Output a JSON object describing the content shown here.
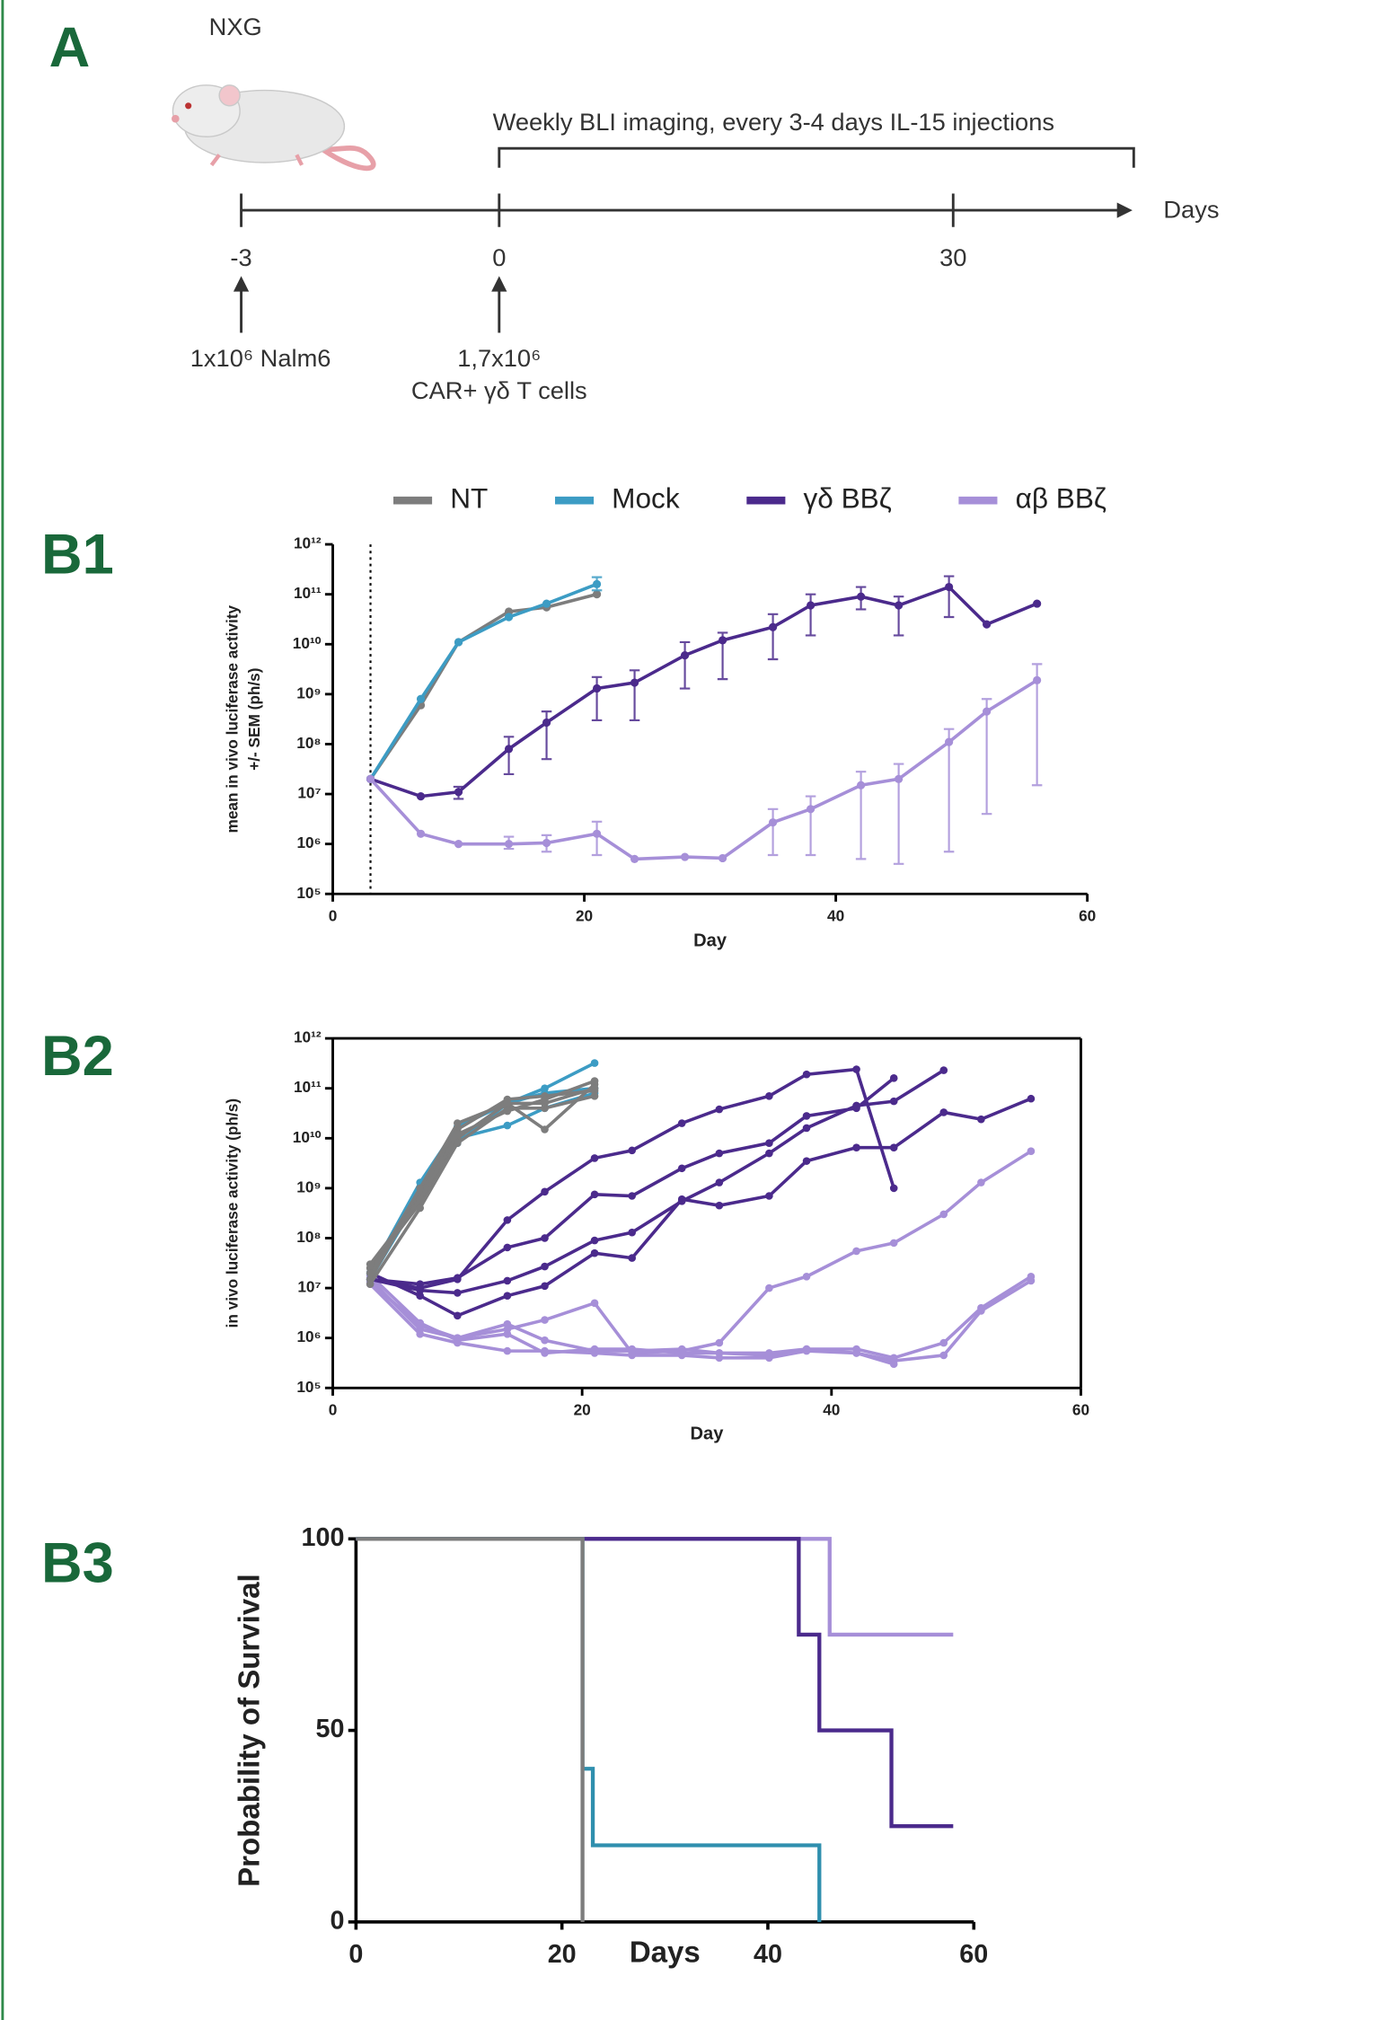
{
  "panels": [
    "A",
    "B1",
    "B2",
    "B3"
  ],
  "timeline": {
    "strain": "NXG",
    "bracket_label": "Weekly BLI imaging, every 3-4 days IL-15 injections",
    "axis_label": "Days",
    "ticks": [
      "-3",
      "0",
      "30"
    ],
    "events": [
      [
        "1x10⁶ Nalm6"
      ],
      [
        "1,7x10⁶",
        "CAR+ γδ T cells"
      ]
    ]
  },
  "chart_data": [
    {
      "type": "line",
      "ylog": true,
      "legend": "top",
      "xlabel": "Day",
      "ylabel": [
        "mean in vivo luciferase activity",
        "+/- SEM (ph/s)"
      ],
      "xlim": [
        0,
        60
      ],
      "xticks": [
        0,
        20,
        40,
        60
      ],
      "ylim": [
        100000.0,
        1000000000000.0
      ],
      "yticks": [
        {
          "value": 100000.0,
          "label": "10⁵"
        },
        {
          "value": 1000000.0,
          "label": "10⁶"
        },
        {
          "value": 10000000.0,
          "label": "10⁷"
        },
        {
          "value": 100000000.0,
          "label": "10⁸"
        },
        {
          "value": 1000000000.0,
          "label": "10⁹"
        },
        {
          "value": 10000000000.0,
          "label": "10¹⁰"
        },
        {
          "value": 100000000000.0,
          "label": "10¹¹"
        },
        {
          "value": 1000000000000.0,
          "label": "10¹²"
        }
      ],
      "vline_x": 3,
      "series": [
        {
          "name": "NT",
          "color": "#7d7d7d",
          "x": [
            3,
            7,
            10,
            14,
            17,
            21
          ],
          "values": [
            20000000.0,
            600000000.0,
            11000000000.0,
            45000000000.0,
            55000000000.0,
            100000000000.0
          ]
        },
        {
          "name": "Mock",
          "color": "#3c9cc4",
          "x": [
            3,
            7,
            10,
            14,
            17,
            21
          ],
          "values": [
            20000000.0,
            800000000.0,
            11000000000.0,
            35000000000.0,
            65000000000.0,
            160000000000.0
          ],
          "error_lower": [
            null,
            null,
            null,
            null,
            null,
            120000000000.0
          ],
          "error_upper": [
            null,
            null,
            null,
            null,
            null,
            220000000000.0
          ]
        },
        {
          "name": "γδ BBζ",
          "color": "#4b2a8c",
          "x": [
            3,
            7,
            10,
            14,
            17,
            21,
            24,
            28,
            31,
            35,
            38,
            42,
            45,
            49,
            52,
            56
          ],
          "values": [
            20000000.0,
            9000000.0,
            11000000.0,
            80000000.0,
            270000000.0,
            1300000000.0,
            1700000000.0,
            6000000000.0,
            12000000000.0,
            22000000000.0,
            60000000000.0,
            90000000000.0,
            60000000000.0,
            140000000000.0,
            25000000000.0,
            65000000000.0
          ],
          "error_lower": [
            null,
            null,
            8000000.0,
            25000000.0,
            50000000.0,
            300000000.0,
            300000000.0,
            1300000000.0,
            2000000000.0,
            5000000000.0,
            15000000000.0,
            50000000000.0,
            15000000000.0,
            35000000000.0,
            null,
            null
          ],
          "error_upper": [
            null,
            null,
            14000000.0,
            140000000.0,
            450000000.0,
            2200000000.0,
            3000000000.0,
            11000000000.0,
            17000000000.0,
            40000000000.0,
            100000000000.0,
            140000000000.0,
            90000000000.0,
            230000000000.0,
            null,
            null
          ]
        },
        {
          "name": "αβ BBζ",
          "color": "#a68fd8",
          "x": [
            3,
            7,
            10,
            14,
            17,
            21,
            24,
            28,
            31,
            35,
            38,
            42,
            45,
            49,
            52,
            56
          ],
          "values": [
            20000000.0,
            1600000.0,
            1000000.0,
            1000000.0,
            1050000.0,
            1600000.0,
            500000.0,
            550000.0,
            520000.0,
            2700000.0,
            5000000.0,
            15000000.0,
            20000000.0,
            110000000.0,
            450000000.0,
            1900000000.0
          ],
          "error_lower": [
            null,
            null,
            null,
            800000.0,
            700000.0,
            600000.0,
            null,
            null,
            null,
            600000.0,
            600000.0,
            500000.0,
            400000.0,
            700000.0,
            4000000.0,
            15000000.0
          ],
          "error_upper": [
            null,
            null,
            null,
            1400000.0,
            1500000.0,
            2800000.0,
            null,
            null,
            null,
            5000000.0,
            9000000.0,
            28000000.0,
            40000000.0,
            200000000.0,
            800000000.0,
            4000000000.0
          ]
        }
      ]
    },
    {
      "type": "line",
      "ylog": true,
      "xlabel": "Day",
      "ylabel": [
        "in vivo luciferase activity (ph/s)"
      ],
      "xlim": [
        0,
        60
      ],
      "xticks": [
        0,
        20,
        40,
        60
      ],
      "ylim": [
        100000.0,
        1000000000000.0
      ],
      "yticks": [
        {
          "value": 100000.0,
          "label": "10⁵"
        },
        {
          "value": 1000000.0,
          "label": "10⁶"
        },
        {
          "value": 10000000.0,
          "label": "10⁷"
        },
        {
          "value": 100000000.0,
          "label": "10⁸"
        },
        {
          "value": 1000000000.0,
          "label": "10⁹"
        },
        {
          "value": 10000000000.0,
          "label": "10¹⁰"
        },
        {
          "value": 100000000000.0,
          "label": "10¹¹"
        },
        {
          "value": 1000000000000.0,
          "label": "10¹²"
        }
      ],
      "series": [
        {
          "color": "#a68fd8",
          "x": [
            3,
            7,
            10,
            14,
            17,
            21,
            24,
            28,
            31,
            35,
            38,
            42,
            45,
            49,
            52,
            56
          ],
          "values": [
            15000000.0,
            1500000.0,
            1000000.0,
            1500000.0,
            2300000.0,
            5000000.0,
            500000.0,
            550000.0,
            800000.0,
            10000000.0,
            17000000.0,
            55000000.0,
            80000000.0,
            300000000.0,
            1300000000.0,
            5500000000.0
          ]
        },
        {
          "color": "#a68fd8",
          "x": [
            3,
            7,
            10,
            14,
            17,
            21,
            24,
            28,
            31,
            35,
            38,
            42,
            45,
            49,
            52,
            56
          ],
          "values": [
            13000000.0,
            1800000.0,
            1000000.0,
            1900000.0,
            900000.0,
            550000.0,
            550000.0,
            600000.0,
            500000.0,
            500000.0,
            600000.0,
            600000.0,
            400000.0,
            800000.0,
            4000000.0,
            17000000.0
          ]
        },
        {
          "color": "#a68fd8",
          "x": [
            3,
            7,
            10,
            14,
            17,
            21,
            24,
            28,
            31,
            35,
            38,
            42,
            45,
            49,
            52,
            56
          ],
          "values": [
            12000000.0,
            1200000.0,
            800000.0,
            550000.0,
            550000.0,
            500000.0,
            450000.0,
            450000.0,
            400000.0,
            400000.0,
            550000.0,
            500000.0,
            350000.0,
            450000.0,
            3500000.0,
            14000000.0
          ]
        },
        {
          "color": "#a68fd8",
          "x": [
            3,
            7,
            10,
            14,
            17,
            21,
            24,
            28,
            31,
            35,
            38,
            42,
            45
          ],
          "values": [
            18000000.0,
            2000000.0,
            900000.0,
            1200000.0,
            500000.0,
            600000.0,
            600000.0,
            500000.0,
            500000.0,
            450000.0,
            600000.0,
            500000.0,
            300000.0
          ]
        },
        {
          "color": "#4b2a8c",
          "x": [
            3,
            7,
            10,
            14,
            17,
            21,
            24,
            28,
            31,
            35,
            38,
            42,
            45
          ],
          "values": [
            15000000.0,
            10000000.0,
            15000000.0,
            230000000.0,
            850000000.0,
            4000000000.0,
            5700000000.0,
            20000000000.0,
            38000000000.0,
            70000000000.0,
            190000000000.0,
            240000000000.0,
            1000000000.0
          ]
        },
        {
          "color": "#4b2a8c",
          "x": [
            3,
            7,
            10,
            14,
            17,
            21,
            24,
            28,
            31,
            35,
            38,
            42,
            45
          ],
          "values": [
            15000000.0,
            12000000.0,
            16000000.0,
            65000000.0,
            100000000.0,
            750000000.0,
            700000000.0,
            2500000000.0,
            5000000000.0,
            8000000000.0,
            28000000000.0,
            40000000000.0,
            160000000000.0
          ]
        },
        {
          "color": "#4b2a8c",
          "x": [
            3,
            7,
            10,
            14,
            17,
            21,
            24,
            28,
            31,
            35,
            38,
            42,
            45,
            49,
            52,
            56
          ],
          "values": [
            20000000.0,
            7000000.0,
            2800000.0,
            7000000.0,
            11000000.0,
            50000000.0,
            40000000.0,
            600000000.0,
            450000000.0,
            700000000.0,
            3500000000.0,
            6500000000.0,
            6500000000.0,
            33000000000.0,
            24000000000.0,
            62000000000.0
          ]
        },
        {
          "color": "#4b2a8c",
          "x": [
            3,
            7,
            10,
            14,
            17,
            21,
            24,
            28,
            31,
            35,
            38,
            42,
            45,
            49
          ],
          "values": [
            15000000.0,
            9000000.0,
            8000000.0,
            14000000.0,
            27000000.0,
            90000000.0,
            130000000.0,
            550000000.0,
            1300000000.0,
            5000000000.0,
            16000000000.0,
            45000000000.0,
            55000000000.0,
            230000000000.0
          ]
        },
        {
          "color": "#3c9cc4",
          "x": [
            3,
            7,
            10,
            14,
            17,
            21
          ],
          "values": [
            20000000.0,
            1300000000.0,
            17000000000.0,
            50000000000.0,
            100000000000.0,
            320000000000.0
          ]
        },
        {
          "color": "#3c9cc4",
          "x": [
            3,
            7,
            10,
            14,
            17,
            21
          ],
          "values": [
            15000000.0,
            700000000.0,
            10000000000.0,
            18000000000.0,
            40000000000.0,
            80000000000.0
          ]
        },
        {
          "color": "#3c9cc4",
          "x": [
            3,
            7,
            10,
            14,
            17,
            21
          ],
          "values": [
            20000000.0,
            1000000000.0,
            8000000000.0,
            50000000000.0,
            80000000000.0,
            100000000000.0
          ]
        },
        {
          "color": "#7d7d7d",
          "x": [
            3,
            7,
            10,
            14,
            17,
            21
          ],
          "values": [
            25000000.0,
            500000000.0,
            10000000000.0,
            50000000000.0,
            15000000000.0,
            120000000000.0
          ]
        },
        {
          "color": "#7d7d7d",
          "x": [
            3,
            7,
            10,
            14,
            17,
            21
          ],
          "values": [
            15000000.0,
            800000000.0,
            15000000000.0,
            60000000000.0,
            70000000000.0,
            90000000000.0
          ]
        },
        {
          "color": "#7d7d7d",
          "x": [
            3,
            7,
            10,
            14,
            17,
            21
          ],
          "values": [
            12000000.0,
            400000000.0,
            8000000000.0,
            40000000000.0,
            40000000000.0,
            70000000000.0
          ]
        },
        {
          "color": "#7d7d7d",
          "x": [
            3,
            7,
            10,
            14,
            17,
            21
          ],
          "values": [
            20000000.0,
            1000000000.0,
            20000000000.0,
            50000000000.0,
            50000000000.0,
            100000000000.0
          ]
        },
        {
          "color": "#7d7d7d",
          "x": [
            3,
            7,
            10,
            14,
            17,
            21
          ],
          "values": [
            30000000.0,
            600000000.0,
            12000000000.0,
            35000000000.0,
            60000000000.0,
            140000000000.0
          ]
        }
      ]
    },
    {
      "type": "survival",
      "xlabel": "Days",
      "ylabel": [
        "Probability of Survival"
      ],
      "xlim": [
        0,
        60
      ],
      "xticks": [
        0,
        20,
        40,
        60
      ],
      "ylim": [
        0,
        100
      ],
      "yticks": [
        0,
        50,
        100
      ],
      "series": [
        {
          "color": "#a68fd8",
          "x": [
            0,
            46,
            58
          ],
          "values": [
            100,
            75,
            75
          ]
        },
        {
          "color": "#4b2a8c",
          "x": [
            0,
            43,
            45,
            52,
            58
          ],
          "values": [
            100,
            75,
            50,
            25,
            25
          ]
        },
        {
          "color": "#2f8fae",
          "x": [
            0,
            22,
            23,
            45
          ],
          "values": [
            100,
            40,
            20,
            0
          ]
        },
        {
          "color": "#7d7d7d",
          "x": [
            0,
            22
          ],
          "values": [
            100,
            0
          ]
        }
      ]
    }
  ]
}
